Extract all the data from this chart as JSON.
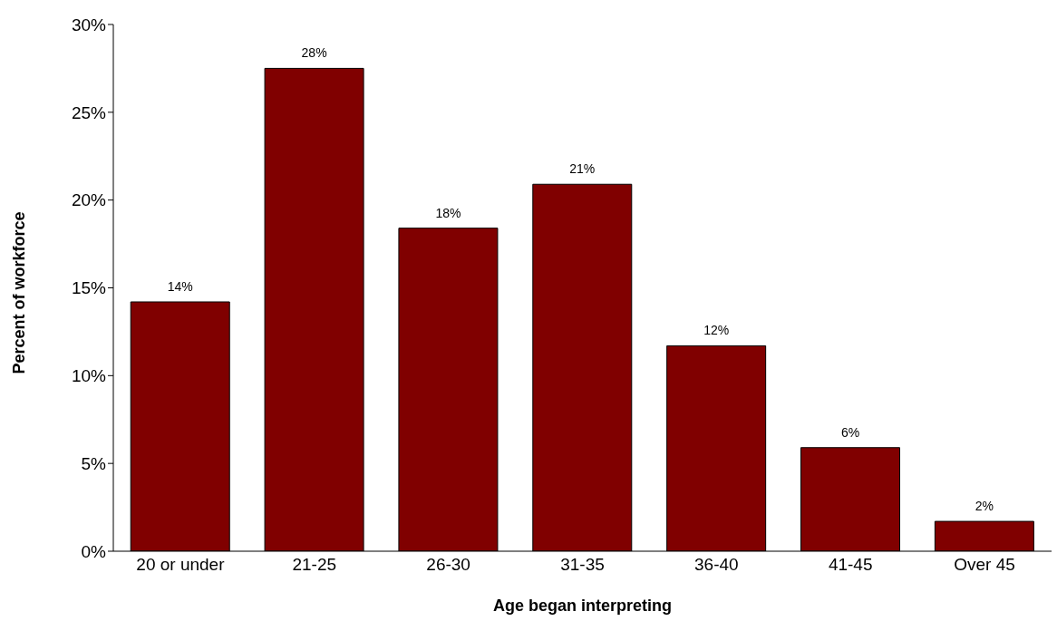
{
  "chart_data": {
    "type": "bar",
    "xlabel": "Age began interpreting",
    "ylabel": "Percent of workforce",
    "categories": [
      "20 or under",
      "21-25",
      "26-30",
      "31-35",
      "36-40",
      "41-45",
      "Over 45"
    ],
    "values": [
      14.2,
      27.5,
      18.4,
      20.9,
      11.7,
      5.9,
      1.7
    ],
    "value_labels": [
      "14%",
      "28%",
      "18%",
      "21%",
      "12%",
      "6%",
      "2%"
    ],
    "color": "#800000",
    "ylim": [
      0,
      30
    ],
    "yticks": [
      {
        "value": 0,
        "label": "0%"
      },
      {
        "value": 5,
        "label": "5%"
      },
      {
        "value": 10,
        "label": "10%"
      },
      {
        "value": 15,
        "label": "15%"
      },
      {
        "value": 20,
        "label": "20%"
      },
      {
        "value": 25,
        "label": "25%"
      },
      {
        "value": 30,
        "label": "30%"
      }
    ]
  }
}
